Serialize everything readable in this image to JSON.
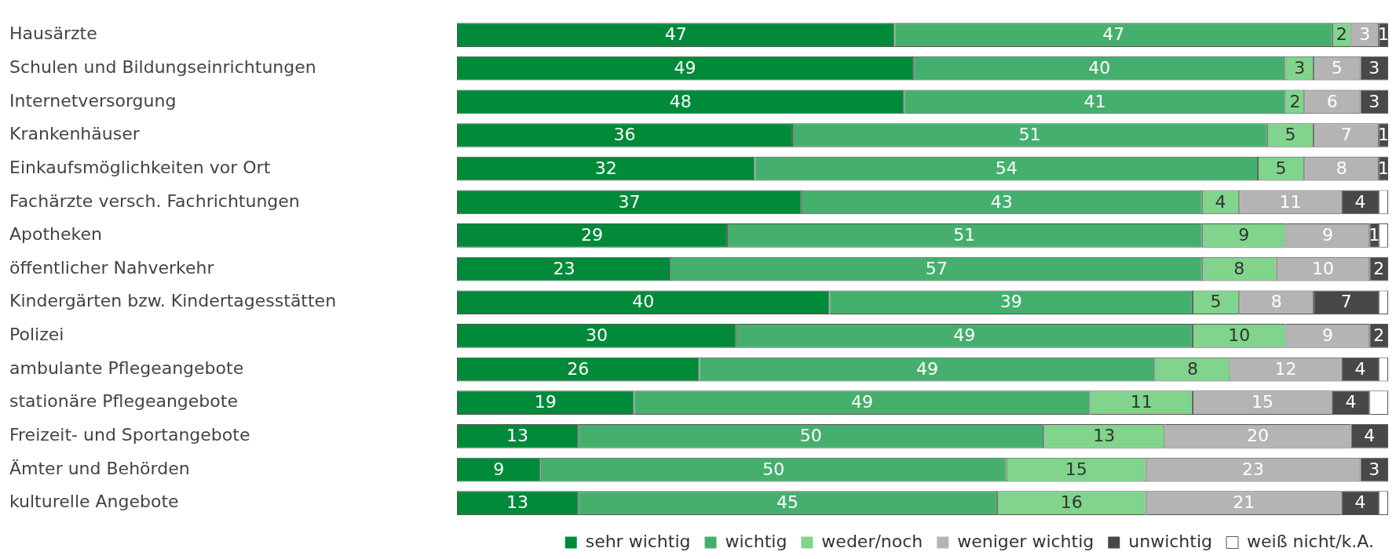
{
  "chart_data": {
    "type": "bar",
    "orientation": "horizontal",
    "stacked": true,
    "categories": [
      "Hausärzte",
      "Schulen und Bildungseinrichtungen",
      "Internetversorgung",
      "Krankenhäuser",
      "Einkaufsmöglichkeiten vor Ort",
      "Fachärzte versch. Fachrichtungen",
      "Apotheken",
      "öffentlicher Nahverkehr",
      "Kindergärten bzw. Kindertagesstätten",
      "Polizei",
      "ambulante Pflegeangebote",
      "stationäre Pflegeangebote",
      "Freizeit- und Sportangebote",
      "Ämter und Behörden",
      "kulturelle Angebote"
    ],
    "series": [
      {
        "name": "sehr wichtig",
        "color": "#008a3a",
        "values": [
          47,
          49,
          48,
          36,
          32,
          37,
          29,
          23,
          40,
          30,
          26,
          19,
          13,
          9,
          13
        ],
        "value_labels": [
          "47",
          "49",
          "48",
          "36",
          "32",
          "37",
          "29",
          "23",
          "40",
          "30",
          "26",
          "19",
          "13",
          "9",
          "13"
        ]
      },
      {
        "name": "wichtig",
        "color": "#45b06e",
        "values": [
          47,
          40,
          41,
          51,
          54,
          43,
          51,
          57,
          39,
          49,
          49,
          49,
          50,
          50,
          45
        ],
        "value_labels": [
          "47",
          "40",
          "41",
          "51",
          "54",
          "43",
          "51",
          "57",
          "39",
          "49",
          "49",
          "49",
          "50",
          "50",
          "45"
        ]
      },
      {
        "name": "weder/noch",
        "color": "#80d48b",
        "values": [
          2,
          3,
          2,
          5,
          5,
          4,
          9,
          8,
          5,
          10,
          8,
          11,
          13,
          15,
          16
        ],
        "value_labels": [
          "2",
          "3",
          "2",
          "5",
          "5",
          "4",
          "9",
          "8",
          "5",
          "10",
          "8",
          "11",
          "13",
          "15",
          "16"
        ]
      },
      {
        "name": "weniger wichtig",
        "color": "#b4b4b4",
        "values": [
          3,
          5,
          6,
          7,
          8,
          11,
          9,
          10,
          8,
          9,
          12,
          15,
          20,
          23,
          21
        ],
        "value_labels": [
          "3",
          "5",
          "6",
          "7",
          "8",
          "11",
          "9",
          "10",
          "8",
          "9",
          "12",
          "15",
          "20",
          "23",
          "21"
        ]
      },
      {
        "name": "unwichtig",
        "color": "#484848",
        "values": [
          1,
          3,
          3,
          1,
          1,
          4,
          1,
          2,
          7,
          2,
          4,
          4,
          4,
          3,
          4
        ],
        "value_labels": [
          "1",
          "3",
          "3",
          "1",
          "1",
          "4",
          "1",
          "2",
          "7",
          "2",
          "4",
          "4",
          "4",
          "3",
          "4"
        ]
      },
      {
        "name": "weiß nicht/k.A.",
        "color": "#ffffff",
        "values": [
          0,
          0,
          0,
          0,
          0,
          1,
          1,
          0,
          1,
          0,
          1,
          2,
          0,
          0,
          1
        ],
        "value_labels": [
          null,
          null,
          null,
          null,
          null,
          null,
          null,
          null,
          null,
          null,
          null,
          null,
          null,
          null,
          null
        ]
      }
    ],
    "xlim": [
      0,
      100
    ],
    "tick_labels": "y",
    "legend": "bottom right"
  }
}
